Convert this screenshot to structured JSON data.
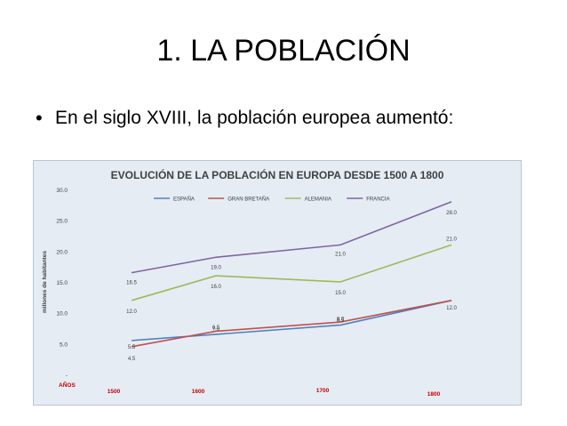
{
  "slide": {
    "title": "1. LA POBLACIÓN",
    "bullet_marker": "•",
    "bullet_text": "En el siglo XVIII, la población europea aumentó:"
  },
  "chart_data": {
    "type": "line",
    "title": "EVOLUCIÓN DE LA POBLACIÓN EN EUROPA DESDE 1500 A 1800",
    "xlabel": "AÑOS",
    "ylabel": "millones de habitantes",
    "categories": [
      "1500",
      "1600",
      "1700",
      "1800"
    ],
    "ylim": [
      0,
      30
    ],
    "y_ticks": [
      "-",
      "5.0",
      "10.0",
      "15.0",
      "20.0",
      "25.0",
      "30.0"
    ],
    "y_tick_values": [
      0,
      5,
      10,
      15,
      20,
      25,
      30
    ],
    "grid": false,
    "legend_position": "top",
    "series": [
      {
        "name": "ESPAÑA",
        "color": "#4f81bd",
        "values": [
          5.5,
          6.5,
          8.0,
          12.0
        ],
        "labels": [
          "5.5",
          "6.5",
          "8.0",
          "12.0"
        ]
      },
      {
        "name": "GRAN BRETAÑA",
        "color": "#c0504d",
        "values": [
          4.5,
          7.0,
          8.5,
          12.0
        ],
        "labels": [
          "4.5",
          "7.0",
          "8.5",
          ""
        ]
      },
      {
        "name": "ALEMANIA",
        "color": "#9bbb59",
        "values": [
          12.0,
          16.0,
          15.0,
          21.0
        ],
        "labels": [
          "12.0",
          "16.0",
          "15.0",
          "21.0"
        ]
      },
      {
        "name": "FRANCIA",
        "color": "#8064a2",
        "values": [
          16.5,
          19.0,
          21.0,
          28.0
        ],
        "labels": [
          "16.5",
          "19.0",
          "21.0",
          "28.0"
        ]
      }
    ],
    "colors": {
      "title": "#404040",
      "axis_labels": "#c00000",
      "tick_text": "#404040"
    }
  }
}
